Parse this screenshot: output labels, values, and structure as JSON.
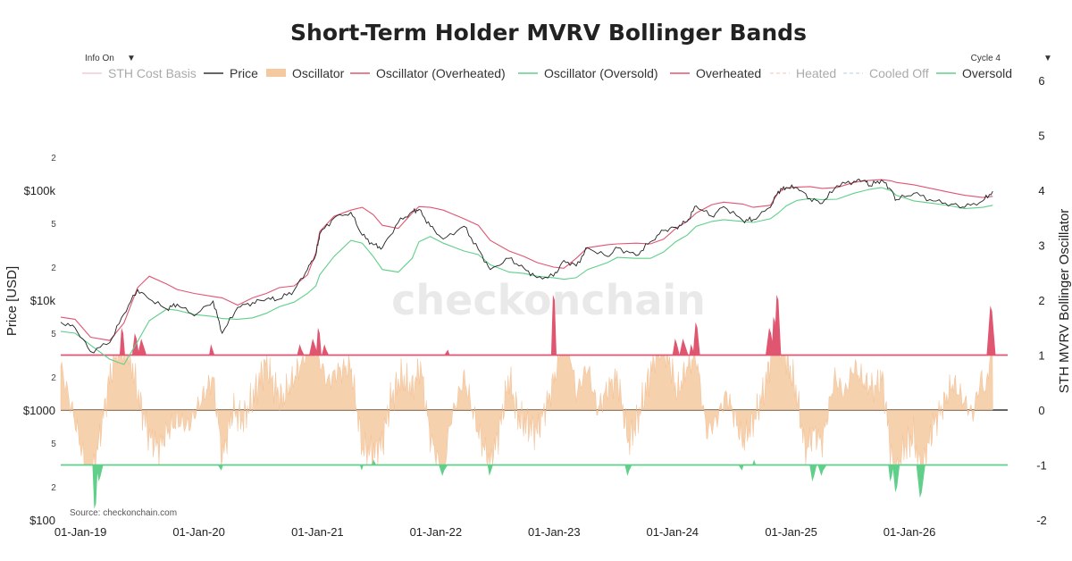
{
  "chart_data": {
    "type": "line",
    "title": "Short-Term Holder MVRV Bollinger Bands",
    "source": "Source: checkonchain.com",
    "watermark": "checkonchain",
    "ylabel_left": "Price [USD]",
    "ylabel_right": "STH MVRV Bollinger Oscillator",
    "y_left_scale": "log",
    "y_left_range": [
      100,
      1000000
    ],
    "y_right_range": [
      -2,
      6
    ],
    "x_range": [
      "2018-11-01",
      "2026-10-31"
    ],
    "x_tick_labels": [
      "01-Jan-19",
      "01-Jan-20",
      "01-Jan-21",
      "01-Jan-22",
      "01-Jan-23",
      "01-Jan-24",
      "01-Jan-25",
      "01-Jan-26"
    ],
    "y_left_major_ticks": [
      {
        "value": 100,
        "label": "$100"
      },
      {
        "value": 1000,
        "label": "$1000"
      },
      {
        "value": 10000,
        "label": "$10k"
      },
      {
        "value": 100000,
        "label": "$100k"
      }
    ],
    "y_left_minor_ticks": [
      {
        "value": 200,
        "label": "2"
      },
      {
        "value": 500,
        "label": "5"
      },
      {
        "value": 2000,
        "label": "2"
      },
      {
        "value": 5000,
        "label": "5"
      },
      {
        "value": 20000,
        "label": "2"
      },
      {
        "value": 50000,
        "label": "5"
      },
      {
        "value": 200000,
        "label": "2"
      }
    ],
    "y_right_ticks": [
      -2,
      -1,
      0,
      1,
      2,
      3,
      4,
      5,
      6
    ],
    "legend_position": "top",
    "legend": [
      {
        "name": "STH Cost Basis",
        "color": "#e3a5b3",
        "style": "line",
        "hidden": true
      },
      {
        "name": "Price",
        "color": "#333333",
        "style": "line",
        "hidden": false
      },
      {
        "name": "Oscillator",
        "color": "#f5c9a0",
        "style": "area",
        "hidden": false
      },
      {
        "name": "Oscillator (Overheated)",
        "color": "#e05570",
        "style": "line",
        "hidden": false
      },
      {
        "name": "Oscillator (Oversold)",
        "color": "#5fcf8a",
        "style": "line",
        "hidden": false
      },
      {
        "name": "Overheated",
        "color": "#e05570",
        "style": "line",
        "hidden": false
      },
      {
        "name": "Heated",
        "color": "#f2b8a8",
        "style": "dash",
        "hidden": true
      },
      {
        "name": "Cooled Off",
        "color": "#a9c3e8",
        "style": "dash",
        "hidden": true
      },
      {
        "name": "Oversold",
        "color": "#5fcf8a",
        "style": "line",
        "hidden": false
      }
    ],
    "overheated_line_level": 1,
    "oversold_line_level": -1,
    "zero_line_level": 0,
    "series": [
      {
        "name": "Price",
        "color": "#222222",
        "x": [
          "2018-11-01",
          "2018-12-15",
          "2019-02-01",
          "2019-04-01",
          "2019-05-15",
          "2019-06-26",
          "2019-08-01",
          "2019-09-24",
          "2019-10-26",
          "2019-12-18",
          "2020-02-14",
          "2020-03-13",
          "2020-04-30",
          "2020-06-15",
          "2020-07-27",
          "2020-09-05",
          "2020-10-21",
          "2020-12-01",
          "2020-12-27",
          "2021-01-08",
          "2021-02-21",
          "2021-04-14",
          "2021-05-19",
          "2021-06-22",
          "2021-07-20",
          "2021-09-07",
          "2021-10-20",
          "2021-11-10",
          "2021-12-15",
          "2022-01-24",
          "2022-03-29",
          "2022-05-12",
          "2022-06-18",
          "2022-08-15",
          "2022-09-30",
          "2022-11-09",
          "2022-12-30",
          "2023-01-31",
          "2023-03-10",
          "2023-04-14",
          "2023-06-15",
          "2023-07-15",
          "2023-09-11",
          "2023-10-25",
          "2023-12-05",
          "2024-01-11",
          "2024-02-15",
          "2024-03-14",
          "2024-05-01",
          "2024-06-07",
          "2024-08-05",
          "2024-09-06",
          "2024-10-29",
          "2024-11-22",
          "2024-12-17",
          "2025-01-20",
          "2025-02-28",
          "2025-04-07",
          "2025-05-22",
          "2025-07-14",
          "2025-08-14",
          "2025-09-01",
          "2025-10-06",
          "2025-11-05",
          "2025-11-21",
          "2026-01-15",
          "2026-03-15",
          "2026-05-10",
          "2026-06-20",
          "2026-08-15",
          "2026-09-15"
        ],
        "values": [
          6300,
          5600,
          3400,
          4100,
          7500,
          12500,
          10200,
          8300,
          9200,
          7200,
          9800,
          5000,
          8600,
          9500,
          10200,
          10200,
          12300,
          19000,
          26000,
          40000,
          56000,
          63000,
          39000,
          32000,
          30000,
          51000,
          64000,
          67000,
          47000,
          36000,
          47000,
          29000,
          19000,
          24000,
          19500,
          16000,
          16500,
          23000,
          20500,
          30000,
          25000,
          30000,
          25500,
          34000,
          43000,
          46000,
          52000,
          72000,
          58000,
          71000,
          53000,
          54000,
          70000,
          98000,
          106000,
          105000,
          84000,
          76000,
          110000,
          121000,
          123000,
          110000,
          124000,
          101000,
          82000,
          94000,
          80000,
          75000,
          70000,
          80000,
          98000
        ]
      },
      {
        "name": "Overheated",
        "color": "#e05570",
        "x": [
          "2018-11-01",
          "2018-12-15",
          "2019-02-01",
          "2019-04-01",
          "2019-05-15",
          "2019-06-26",
          "2019-08-01",
          "2019-09-24",
          "2019-10-26",
          "2019-12-18",
          "2020-02-14",
          "2020-03-13",
          "2020-04-30",
          "2020-06-15",
          "2020-07-27",
          "2020-09-05",
          "2020-10-21",
          "2020-12-01",
          "2020-12-27",
          "2021-01-08",
          "2021-02-21",
          "2021-04-14",
          "2021-05-19",
          "2021-06-22",
          "2021-07-20",
          "2021-09-07",
          "2021-10-20",
          "2021-11-10",
          "2021-12-15",
          "2022-01-24",
          "2022-03-29",
          "2022-05-12",
          "2022-06-18",
          "2022-08-15",
          "2022-09-30",
          "2022-11-09",
          "2022-12-30",
          "2023-01-31",
          "2023-03-10",
          "2023-04-14",
          "2023-06-15",
          "2023-07-15",
          "2023-09-11",
          "2023-10-25",
          "2023-12-05",
          "2024-01-11",
          "2024-02-15",
          "2024-03-14",
          "2024-05-01",
          "2024-06-07",
          "2024-08-05",
          "2024-09-06",
          "2024-10-29",
          "2024-11-22",
          "2024-12-17",
          "2025-01-20",
          "2025-02-28",
          "2025-04-07",
          "2025-05-22",
          "2025-07-14",
          "2025-08-14",
          "2025-09-01",
          "2025-10-06",
          "2025-11-05",
          "2025-11-21",
          "2026-01-15",
          "2026-03-15",
          "2026-05-10",
          "2026-06-20",
          "2026-08-15",
          "2026-09-15"
        ],
        "values": [
          7000,
          6700,
          4600,
          4300,
          6200,
          13000,
          16500,
          14000,
          12500,
          11500,
          10800,
          10500,
          9000,
          10500,
          11500,
          13000,
          13500,
          17000,
          27000,
          42000,
          58000,
          66000,
          70000,
          60000,
          48000,
          45000,
          62000,
          71000,
          70000,
          66000,
          55000,
          48000,
          35000,
          28000,
          25000,
          22000,
          20000,
          19500,
          24000,
          30000,
          32000,
          32500,
          33000,
          32500,
          36000,
          45000,
          52000,
          62000,
          74000,
          78000,
          75000,
          70000,
          73000,
          95000,
          105000,
          107000,
          108000,
          104000,
          106000,
          118000,
          122000,
          123000,
          125000,
          122000,
          118000,
          112000,
          103000,
          95000,
          90000,
          86000,
          88000
        ]
      },
      {
        "name": "Oversold",
        "color": "#5fcf8a",
        "x": [
          "2018-11-01",
          "2018-12-15",
          "2019-02-01",
          "2019-04-01",
          "2019-05-15",
          "2019-06-26",
          "2019-08-01",
          "2019-09-24",
          "2019-10-26",
          "2019-12-18",
          "2020-02-14",
          "2020-03-13",
          "2020-04-30",
          "2020-06-15",
          "2020-07-27",
          "2020-09-05",
          "2020-10-21",
          "2020-12-01",
          "2020-12-27",
          "2021-01-08",
          "2021-02-21",
          "2021-04-14",
          "2021-05-19",
          "2021-06-22",
          "2021-07-20",
          "2021-09-07",
          "2021-10-20",
          "2021-11-10",
          "2021-12-15",
          "2022-01-24",
          "2022-03-29",
          "2022-05-12",
          "2022-06-18",
          "2022-08-15",
          "2022-09-30",
          "2022-11-09",
          "2022-12-30",
          "2023-01-31",
          "2023-03-10",
          "2023-04-14",
          "2023-06-15",
          "2023-07-15",
          "2023-09-11",
          "2023-10-25",
          "2023-12-05",
          "2024-01-11",
          "2024-02-15",
          "2024-03-14",
          "2024-05-01",
          "2024-06-07",
          "2024-08-05",
          "2024-09-06",
          "2024-10-29",
          "2024-11-22",
          "2024-12-17",
          "2025-01-20",
          "2025-02-28",
          "2025-04-07",
          "2025-05-22",
          "2025-07-14",
          "2025-08-14",
          "2025-09-01",
          "2025-10-06",
          "2025-11-05",
          "2025-11-21",
          "2026-01-15",
          "2026-03-15",
          "2026-05-10",
          "2026-06-20",
          "2026-08-15",
          "2026-09-15"
        ],
        "values": [
          5200,
          5000,
          3900,
          2900,
          2600,
          4200,
          6500,
          8300,
          8100,
          7400,
          7100,
          6800,
          6700,
          6900,
          7600,
          8700,
          9600,
          11500,
          13500,
          17000,
          25000,
          35000,
          33000,
          25000,
          19000,
          18000,
          24000,
          34000,
          38000,
          33000,
          28000,
          26000,
          21000,
          18000,
          17500,
          16500,
          16000,
          15500,
          16000,
          19000,
          22000,
          24500,
          24000,
          24000,
          27500,
          34000,
          39000,
          47000,
          52000,
          54000,
          52000,
          51000,
          55000,
          62000,
          72000,
          81000,
          84000,
          82000,
          83000,
          94000,
          99000,
          102000,
          106000,
          99000,
          90000,
          80000,
          76000,
          72000,
          68000,
          70000,
          73000
        ]
      },
      {
        "name": "Oscillator",
        "color": "#f5c9a0",
        "x": [
          "2018-11-01",
          "2018-12-15",
          "2019-01-15",
          "2019-02-01",
          "2019-03-01",
          "2019-04-01",
          "2019-05-01",
          "2019-06-01",
          "2019-07-01",
          "2019-08-01",
          "2019-09-01",
          "2019-09-24",
          "2019-10-26",
          "2019-12-01",
          "2020-01-01",
          "2020-02-14",
          "2020-03-13",
          "2020-04-15",
          "2020-05-15",
          "2020-06-15",
          "2020-07-27",
          "2020-08-15",
          "2020-09-15",
          "2020-10-21",
          "2020-11-15",
          "2020-12-15",
          "2021-01-08",
          "2021-02-01",
          "2021-03-01",
          "2021-04-14",
          "2021-05-19",
          "2021-06-22",
          "2021-07-20",
          "2021-08-15",
          "2021-09-15",
          "2021-10-20",
          "2021-11-15",
          "2021-12-15",
          "2022-01-24",
          "2022-02-15",
          "2022-03-29",
          "2022-05-12",
          "2022-06-18",
          "2022-07-15",
          "2022-08-15",
          "2022-09-15",
          "2022-10-15",
          "2022-11-09",
          "2022-12-15",
          "2023-01-15",
          "2023-02-01",
          "2023-03-10",
          "2023-04-14",
          "2023-05-15",
          "2023-06-15",
          "2023-07-15",
          "2023-08-18",
          "2023-09-15",
          "2023-10-25",
          "2023-11-15",
          "2023-12-15",
          "2024-01-15",
          "2024-02-15",
          "2024-03-14",
          "2024-04-15",
          "2024-05-15",
          "2024-06-15",
          "2024-07-15",
          "2024-08-05",
          "2024-09-15",
          "2024-10-15",
          "2024-11-12",
          "2024-12-05",
          "2025-01-15",
          "2025-02-15",
          "2025-03-10",
          "2025-04-07",
          "2025-05-15",
          "2025-06-15",
          "2025-07-14",
          "2025-08-15",
          "2025-09-15",
          "2025-10-10",
          "2025-11-05",
          "2025-11-21",
          "2025-12-15",
          "2026-01-15",
          "2026-02-05",
          "2026-03-15",
          "2026-04-15",
          "2026-05-15",
          "2026-06-15",
          "2026-07-15",
          "2026-08-10",
          "2026-08-25",
          "2026-09-15"
        ],
        "values": [
          0.8,
          -0.2,
          -1.0,
          -1.4,
          -0.5,
          0.6,
          1.3,
          1.0,
          0.2,
          -0.5,
          -0.7,
          -0.4,
          -0.2,
          -0.3,
          0.1,
          0.6,
          -0.9,
          0.0,
          -0.2,
          0.2,
          0.9,
          0.5,
          0.2,
          0.6,
          0.9,
          1.3,
          0.9,
          0.5,
          0.7,
          0.8,
          -0.7,
          -0.8,
          -0.6,
          0.2,
          0.6,
          0.4,
          0.8,
          -0.5,
          -1.2,
          -0.2,
          0.6,
          -0.4,
          -1.0,
          -0.4,
          0.6,
          -0.2,
          -0.3,
          -0.4,
          0.2,
          0.9,
          1.8,
          0.3,
          0.8,
          0.0,
          0.4,
          0.6,
          -0.6,
          -0.2,
          0.7,
          1.2,
          1.1,
          0.3,
          0.8,
          1.0,
          -0.4,
          -0.2,
          0.3,
          -0.2,
          -0.6,
          -0.1,
          0.5,
          1.4,
          1.2,
          0.4,
          -0.8,
          -0.4,
          -0.6,
          0.6,
          0.3,
          0.8,
          0.5,
          0.4,
          0.6,
          -0.8,
          -1.3,
          -0.7,
          -0.5,
          -1.2,
          -0.3,
          0.1,
          0.5,
          0.2,
          -0.1,
          0.6,
          0.3,
          1.5
        ]
      }
    ],
    "overheated_spikes": [
      {
        "x": "2019-05-10",
        "peak": 1.5
      },
      {
        "x": "2019-06-20",
        "peak": 1.4
      },
      {
        "x": "2019-07-10",
        "peak": 1.3
      },
      {
        "x": "2020-02-10",
        "peak": 1.2
      },
      {
        "x": "2020-11-10",
        "peak": 1.2
      },
      {
        "x": "2020-12-20",
        "peak": 1.3
      },
      {
        "x": "2021-01-05",
        "peak": 1.5
      },
      {
        "x": "2021-01-25",
        "peak": 1.2
      },
      {
        "x": "2022-02-10",
        "peak": 1.1
      },
      {
        "x": "2022-12-31",
        "peak": 2.1
      },
      {
        "x": "2024-01-12",
        "peak": 1.3
      },
      {
        "x": "2024-02-05",
        "peak": 1.3
      },
      {
        "x": "2024-03-01",
        "peak": 1.2
      },
      {
        "x": "2024-03-15",
        "peak": 1.6
      },
      {
        "x": "2024-10-28",
        "peak": 1.5
      },
      {
        "x": "2024-11-10",
        "peak": 1.7
      },
      {
        "x": "2024-11-20",
        "peak": 2.1
      },
      {
        "x": "2026-09-10",
        "peak": 1.9
      }
    ],
    "oversold_spikes": [
      {
        "x": "2019-02-15",
        "trough": -1.8
      },
      {
        "x": "2019-03-01",
        "trough": -1.3
      },
      {
        "x": "2020-03-13",
        "trough": -1.1
      },
      {
        "x": "2021-05-20",
        "trough": -1.1
      },
      {
        "x": "2021-06-20",
        "trough": -1.0
      },
      {
        "x": "2022-01-24",
        "trough": -1.2
      },
      {
        "x": "2022-06-18",
        "trough": -1.2
      },
      {
        "x": "2023-08-18",
        "trough": -1.2
      },
      {
        "x": "2024-08-05",
        "trough": -1.1
      },
      {
        "x": "2024-09-06",
        "trough": -1.0
      },
      {
        "x": "2025-03-10",
        "trough": -1.3
      },
      {
        "x": "2025-04-07",
        "trough": -1.2
      },
      {
        "x": "2025-11-05",
        "trough": -1.3
      },
      {
        "x": "2025-11-21",
        "trough": -1.5
      },
      {
        "x": "2026-02-05",
        "trough": -1.6
      }
    ]
  },
  "controls": {
    "info_toggle": "Info On",
    "info_arrow": "▼",
    "cycle_select": "Cycle 4",
    "cycle_arrow": "▼"
  }
}
